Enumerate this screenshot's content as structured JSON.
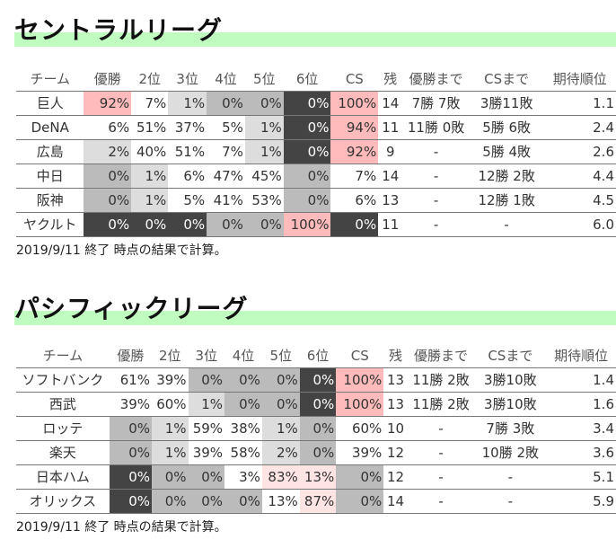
{
  "note": "2019/9/11 終了 時点の結果で計算。",
  "columns": [
    "チーム",
    "優勝",
    "2位",
    "3位",
    "4位",
    "5位",
    "6位",
    "CS",
    "残",
    "優勝まで",
    "CSまで",
    "期待順位"
  ],
  "colors": {
    "dark": "#444444",
    "mid": "#bbbbbb",
    "light": "#dddddd",
    "pink": "#ffbbbb",
    "palepink": "#ffe4e4",
    "header_band": "#c0fcc0"
  },
  "leagues": [
    {
      "title": "セントラルリーグ",
      "rows": [
        {
          "team": "巨人",
          "cells": [
            [
              "92%",
              "pink"
            ],
            [
              "7%",
              ""
            ],
            [
              "1%",
              "light"
            ],
            [
              "0%",
              "mid"
            ],
            [
              "0%",
              "mid"
            ],
            [
              "0%",
              "dark"
            ],
            [
              "100%",
              "pink"
            ]
          ],
          "remaining": "14",
          "to_win": "7勝 7敗",
          "to_cs": "3勝11敗",
          "expected": "1.1"
        },
        {
          "team": "DeNA",
          "cells": [
            [
              "6%",
              ""
            ],
            [
              "51%",
              ""
            ],
            [
              "37%",
              ""
            ],
            [
              "5%",
              ""
            ],
            [
              "1%",
              "light"
            ],
            [
              "0%",
              "dark"
            ],
            [
              "94%",
              "pink"
            ]
          ],
          "remaining": "11",
          "to_win": "11勝 0敗",
          "to_cs": "5勝 6敗",
          "expected": "2.4"
        },
        {
          "team": "広島",
          "cells": [
            [
              "2%",
              "light"
            ],
            [
              "40%",
              ""
            ],
            [
              "51%",
              ""
            ],
            [
              "7%",
              ""
            ],
            [
              "1%",
              "light"
            ],
            [
              "0%",
              "dark"
            ],
            [
              "92%",
              "pink"
            ]
          ],
          "remaining": "9",
          "to_win": "-",
          "to_cs": "5勝 4敗",
          "expected": "2.6"
        },
        {
          "team": "中日",
          "cells": [
            [
              "0%",
              "mid"
            ],
            [
              "1%",
              "light"
            ],
            [
              "6%",
              ""
            ],
            [
              "47%",
              ""
            ],
            [
              "45%",
              ""
            ],
            [
              "0%",
              "mid"
            ],
            [
              "7%",
              ""
            ]
          ],
          "remaining": "14",
          "to_win": "-",
          "to_cs": "12勝 2敗",
          "expected": "4.4"
        },
        {
          "team": "阪神",
          "cells": [
            [
              "0%",
              "mid"
            ],
            [
              "1%",
              "light"
            ],
            [
              "5%",
              ""
            ],
            [
              "41%",
              ""
            ],
            [
              "53%",
              ""
            ],
            [
              "0%",
              "mid"
            ],
            [
              "6%",
              ""
            ]
          ],
          "remaining": "13",
          "to_win": "-",
          "to_cs": "12勝 1敗",
          "expected": "4.5"
        },
        {
          "team": "ヤクルト",
          "cells": [
            [
              "0%",
              "dark"
            ],
            [
              "0%",
              "dark"
            ],
            [
              "0%",
              "dark"
            ],
            [
              "0%",
              "mid"
            ],
            [
              "0%",
              "mid"
            ],
            [
              "100%",
              "pink"
            ],
            [
              "0%",
              "dark"
            ]
          ],
          "remaining": "11",
          "to_win": "-",
          "to_cs": "-",
          "expected": "6.0"
        }
      ]
    },
    {
      "title": "パシフィックリーグ",
      "rows": [
        {
          "team": "ソフトバンク",
          "cells": [
            [
              "61%",
              ""
            ],
            [
              "39%",
              ""
            ],
            [
              "0%",
              "mid"
            ],
            [
              "0%",
              "mid"
            ],
            [
              "0%",
              "mid"
            ],
            [
              "0%",
              "dark"
            ],
            [
              "100%",
              "pink"
            ]
          ],
          "remaining": "13",
          "to_win": "11勝 2敗",
          "to_cs": "3勝10敗",
          "expected": "1.4"
        },
        {
          "team": "西武",
          "cells": [
            [
              "39%",
              ""
            ],
            [
              "60%",
              ""
            ],
            [
              "1%",
              "light"
            ],
            [
              "0%",
              "mid"
            ],
            [
              "0%",
              "mid"
            ],
            [
              "0%",
              "dark"
            ],
            [
              "100%",
              "pink"
            ]
          ],
          "remaining": "13",
          "to_win": "11勝 2敗",
          "to_cs": "3勝10敗",
          "expected": "1.6"
        },
        {
          "team": "ロッテ",
          "cells": [
            [
              "0%",
              "mid"
            ],
            [
              "1%",
              "light"
            ],
            [
              "59%",
              ""
            ],
            [
              "38%",
              ""
            ],
            [
              "1%",
              "light"
            ],
            [
              "0%",
              "mid"
            ],
            [
              "60%",
              ""
            ]
          ],
          "remaining": "10",
          "to_win": "-",
          "to_cs": "7勝 3敗",
          "expected": "3.4"
        },
        {
          "team": "楽天",
          "cells": [
            [
              "0%",
              "mid"
            ],
            [
              "1%",
              "light"
            ],
            [
              "39%",
              ""
            ],
            [
              "58%",
              ""
            ],
            [
              "2%",
              "light"
            ],
            [
              "0%",
              "mid"
            ],
            [
              "39%",
              ""
            ]
          ],
          "remaining": "12",
          "to_win": "-",
          "to_cs": "10勝 2敗",
          "expected": "3.6"
        },
        {
          "team": "日本ハム",
          "cells": [
            [
              "0%",
              "dark"
            ],
            [
              "0%",
              "mid"
            ],
            [
              "0%",
              "mid"
            ],
            [
              "3%",
              ""
            ],
            [
              "83%",
              "palepink"
            ],
            [
              "13%",
              "palepink"
            ],
            [
              "0%",
              "mid"
            ]
          ],
          "remaining": "12",
          "to_win": "-",
          "to_cs": "-",
          "expected": "5.1"
        },
        {
          "team": "オリックス",
          "cells": [
            [
              "0%",
              "dark"
            ],
            [
              "0%",
              "mid"
            ],
            [
              "0%",
              "mid"
            ],
            [
              "0%",
              "mid"
            ],
            [
              "13%",
              ""
            ],
            [
              "87%",
              "palepink"
            ],
            [
              "0%",
              "mid"
            ]
          ],
          "remaining": "14",
          "to_win": "-",
          "to_cs": "-",
          "expected": "5.9"
        }
      ]
    }
  ]
}
